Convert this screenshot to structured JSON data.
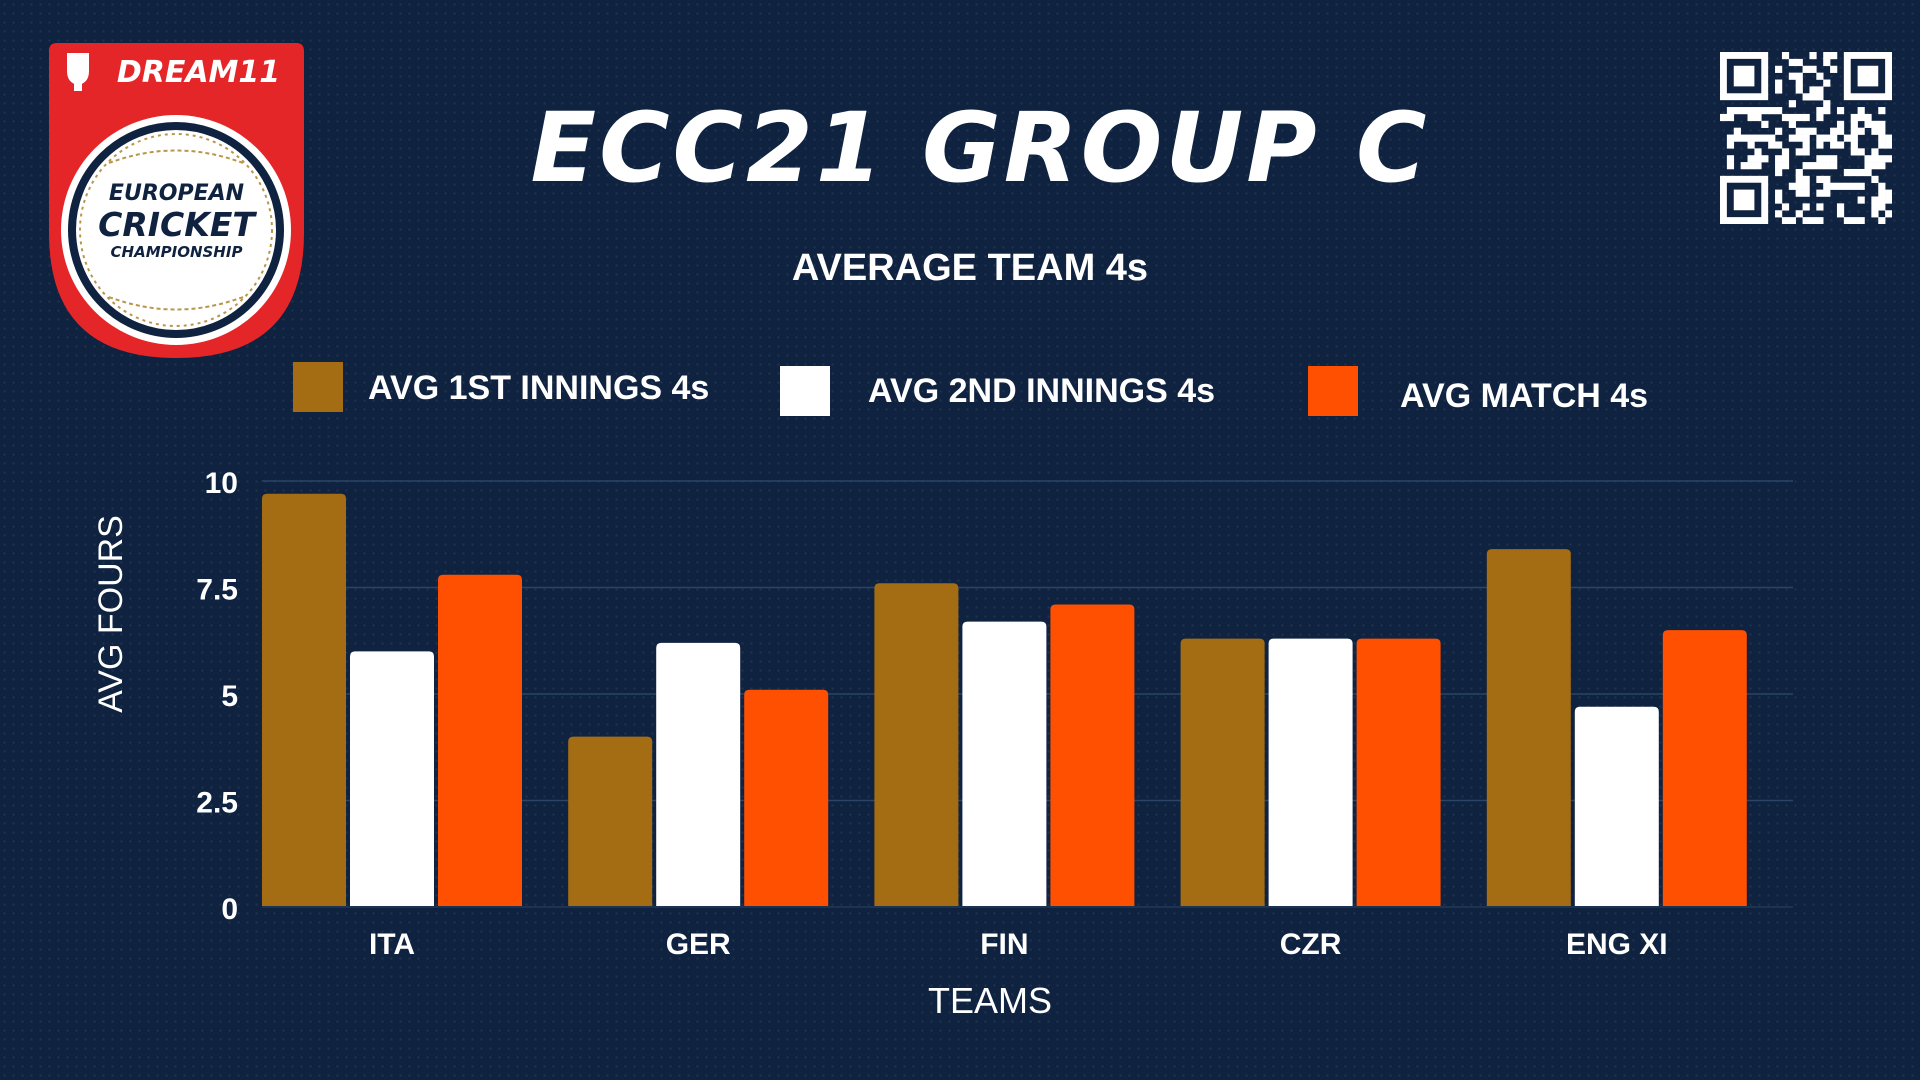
{
  "brand": {
    "sponsor": "DREAM11",
    "seal_line1": "EUROPEAN",
    "seal_line2": "CRICKET",
    "seal_line3": "CHAMPIONSHIP"
  },
  "colors": {
    "background": "#0f2240",
    "series1": "#a46d14",
    "series2": "#ffffff",
    "series3": "#ff4f00",
    "logo_red": "#e52629",
    "gold": "#b8974a"
  },
  "icons": [
    "dream11-logo-icon",
    "cricket-ball-icon",
    "qr-code-icon"
  ],
  "chart_data": {
    "type": "bar",
    "title": "ECC21 GROUP C",
    "subtitle": "AVERAGE TEAM 4s",
    "xlabel": "TEAMS",
    "ylabel": "AVG FOURS",
    "ylim": [
      0,
      10
    ],
    "yticks": [
      "0",
      "2.5",
      "5",
      "7.5",
      "10"
    ],
    "grid": true,
    "legend_position": "top",
    "categories": [
      "ITA",
      "GER",
      "FIN",
      "CZR",
      "ENG XI"
    ],
    "series": [
      {
        "name": "AVG 1ST INNINGS 4s",
        "values": [
          9.7,
          4.0,
          7.6,
          6.3,
          8.4
        ]
      },
      {
        "name": "AVG 2ND INNINGS 4s",
        "values": [
          6.0,
          6.2,
          6.7,
          6.3,
          4.7
        ]
      },
      {
        "name": "AVG MATCH 4s",
        "values": [
          7.8,
          5.1,
          7.1,
          6.3,
          6.5
        ]
      }
    ]
  }
}
